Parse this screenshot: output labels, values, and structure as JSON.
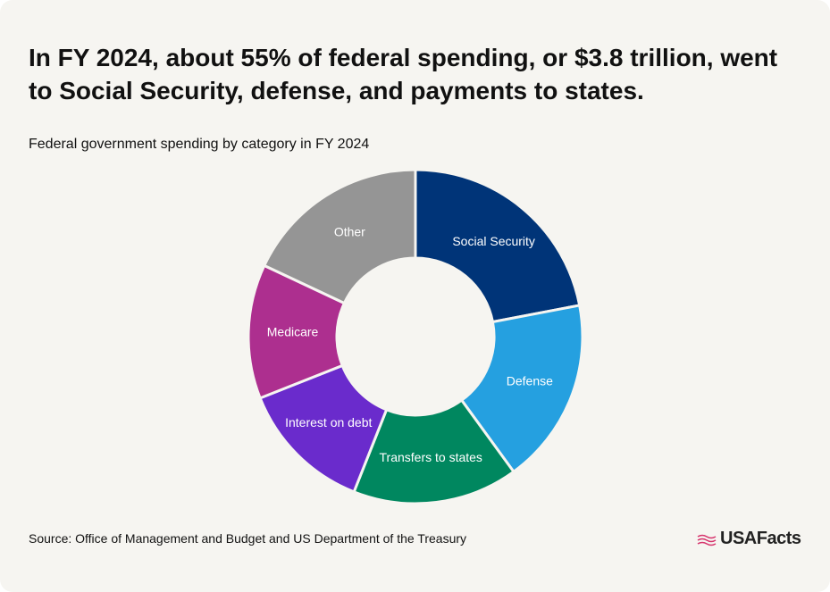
{
  "chart_data": {
    "type": "donut",
    "title": "In FY 2024, about 55% of federal spending, or $3.8 trillion, went to Social Security, defense, and payments to states.",
    "subtitle": "Federal government spending by category in FY 2024",
    "categories": [
      "Social Security",
      "Defense",
      "Transfers to states",
      "Interest on debt",
      "Medicare",
      "Other"
    ],
    "values": [
      22,
      18,
      16,
      13,
      13,
      18
    ],
    "colors": [
      "#003478",
      "#25a0e0",
      "#00875f",
      "#6a2bcc",
      "#ad2f8f",
      "#959595"
    ],
    "source": "Source: Office of Management and Budget and US Department of the Treasury",
    "brand": "USAFacts"
  }
}
